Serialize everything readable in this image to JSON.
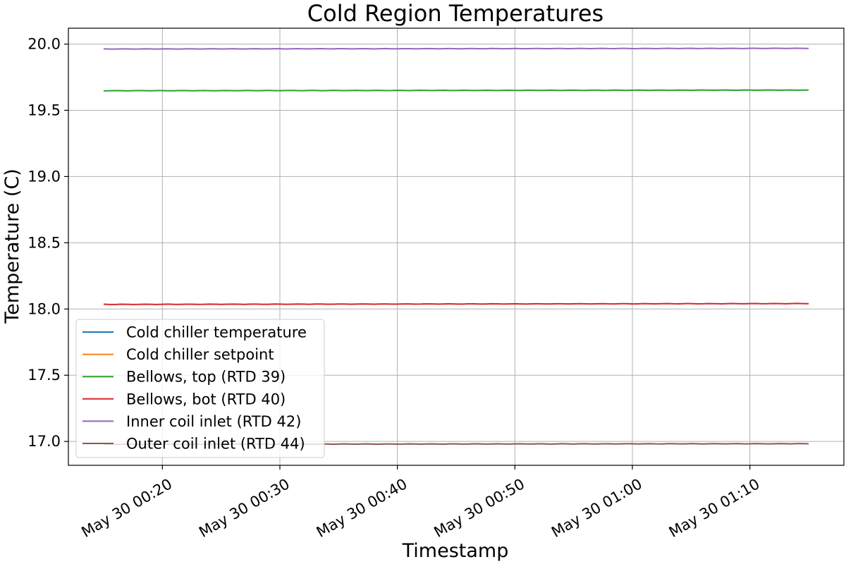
{
  "chart_data": {
    "type": "line",
    "title": "Cold Region Temperatures",
    "xlabel": "Timestamp",
    "ylabel": "Temperature (C)",
    "x_start": "May 30 00:15",
    "x_end": "May 30 01:15",
    "xlim": [
      "May 30 00:12",
      "May 30 01:18"
    ],
    "ylim": [
      16.82,
      20.12
    ],
    "x_ticks": [
      {
        "value": "May 30 00:20",
        "label": "May 30 00:20"
      },
      {
        "value": "May 30 00:30",
        "label": "May 30 00:30"
      },
      {
        "value": "May 30 00:40",
        "label": "May 30 00:40"
      },
      {
        "value": "May 30 00:50",
        "label": "May 30 00:50"
      },
      {
        "value": "May 30 01:00",
        "label": "May 30 01:00"
      },
      {
        "value": "May 30 01:10",
        "label": "May 30 01:10"
      }
    ],
    "y_ticks": [
      17.0,
      17.5,
      18.0,
      18.5,
      19.0,
      19.5,
      20.0
    ],
    "y_tick_labels": [
      "17.0",
      "17.5",
      "18.0",
      "18.5",
      "19.0",
      "19.5",
      "20.0"
    ],
    "grid": true,
    "legend_position": "lower-left",
    "series": [
      {
        "name": "Cold chiller temperature",
        "color": "#1f77b4",
        "values": []
      },
      {
        "name": "Cold chiller setpoint",
        "color": "#ff7f0e",
        "values": []
      },
      {
        "name": "Bellows, top (RTD 39)",
        "color": "#2ca02c",
        "values": [
          19.648,
          19.653
        ]
      },
      {
        "name": "Bellows, bot (RTD 40)",
        "color": "#d62728",
        "values": [
          18.035,
          18.041
        ]
      },
      {
        "name": "Inner coil inlet (RTD 42)",
        "color": "#9467bd",
        "values": [
          19.963,
          19.968
        ]
      },
      {
        "name": "Outer coil inlet (RTD 44)",
        "color": "#8c564b",
        "values": [
          16.979,
          16.983
        ]
      }
    ]
  }
}
